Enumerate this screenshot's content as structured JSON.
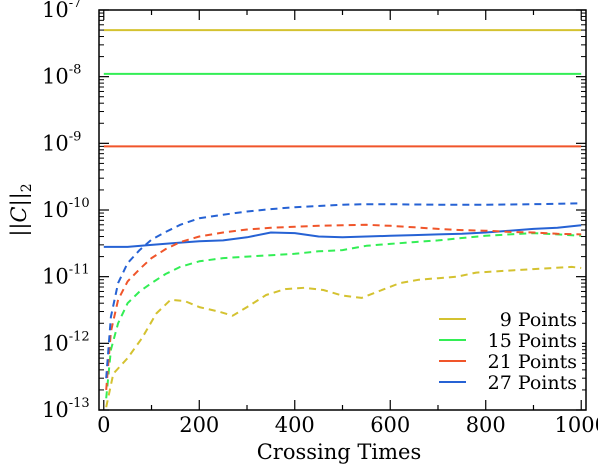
{
  "chart_data": {
    "type": "line",
    "title": "",
    "xlabel": "Crossing Times",
    "ylabel": "||C||₂",
    "ylabel_parts": {
      "open": "||",
      "symbol": "C",
      "close": "||",
      "sub": "2"
    },
    "yscale": "log",
    "xlim": [
      -10,
      1010
    ],
    "ylim": [
      1e-13,
      1e-07
    ],
    "xticks": [
      0,
      200,
      400,
      600,
      800,
      1000
    ],
    "xtick_labels": [
      "0",
      "200",
      "400",
      "600",
      "800",
      "1000"
    ],
    "yticks": [
      1e-13,
      1e-12,
      1e-11,
      1e-10,
      1e-09,
      1e-08,
      1e-07
    ],
    "ytick_labels": [
      {
        "base": "10",
        "exp": "-13"
      },
      {
        "base": "10",
        "exp": "-12"
      },
      {
        "base": "10",
        "exp": "-11"
      },
      {
        "base": "10",
        "exp": "-10"
      },
      {
        "base": "10",
        "exp": "-9"
      },
      {
        "base": "10",
        "exp": "-8"
      },
      {
        "base": "10",
        "exp": "-7"
      }
    ],
    "grid": false,
    "legend_position": "bottom-right",
    "legend": [
      {
        "label": "9 Points",
        "color": "#d4c230"
      },
      {
        "label": "15 Points",
        "color": "#33ee55"
      },
      {
        "label": "21 Points",
        "color": "#f0552a"
      },
      {
        "label": "27 Points",
        "color": "#2662d4"
      }
    ],
    "series": [
      {
        "style": "solid",
        "color": "#d4c230",
        "x": [
          0,
          1000
        ],
        "y": [
          5e-08,
          5e-08
        ]
      },
      {
        "style": "solid",
        "color": "#33ee55",
        "x": [
          0,
          1000
        ],
        "y": [
          1.1e-08,
          1.1e-08
        ]
      },
      {
        "style": "solid",
        "color": "#f0552a",
        "x": [
          0,
          1000
        ],
        "y": [
          9e-10,
          9e-10
        ]
      },
      {
        "style": "solid",
        "color": "#2662d4",
        "x": [
          0,
          50,
          100,
          150,
          200,
          250,
          300,
          350,
          400,
          450,
          500,
          550,
          600,
          650,
          700,
          750,
          800,
          850,
          900,
          950,
          1000
        ],
        "y": [
          2.8e-11,
          2.8e-11,
          3e-11,
          3.2e-11,
          3.4e-11,
          3.5e-11,
          3.9e-11,
          4.6e-11,
          4.5e-11,
          4e-11,
          3.9e-11,
          4e-11,
          4.1e-11,
          4.2e-11,
          4.3e-11,
          4.4e-11,
          4.6e-11,
          4.9e-11,
          5.2e-11,
          5.4e-11,
          5.9e-11
        ]
      },
      {
        "style": "dashed",
        "color": "#d4c230",
        "x": [
          5,
          20,
          50,
          80,
          110,
          140,
          170,
          200,
          240,
          270,
          300,
          340,
          380,
          420,
          460,
          500,
          540,
          580,
          620,
          660,
          700,
          740,
          780,
          820,
          860,
          900,
          940,
          980,
          1000
        ],
        "y": [
          1.1e-13,
          3.5e-13,
          6e-13,
          1.2e-12,
          2.8e-12,
          4.5e-12,
          4.3e-12,
          3.5e-12,
          3e-12,
          2.6e-12,
          3.5e-12,
          5.3e-12,
          6.5e-12,
          6.8e-12,
          6.3e-12,
          5.2e-12,
          4.8e-12,
          6.2e-12,
          8e-12,
          9e-12,
          9.5e-12,
          1e-11,
          1.15e-11,
          1.2e-11,
          1.25e-11,
          1.3e-11,
          1.35e-11,
          1.4e-11,
          1.35e-11
        ]
      },
      {
        "style": "dashed",
        "color": "#33ee55",
        "x": [
          5,
          15,
          30,
          50,
          75,
          100,
          130,
          160,
          200,
          250,
          300,
          350,
          400,
          450,
          500,
          550,
          600,
          650,
          700,
          750,
          800,
          850,
          900,
          950,
          1000
        ],
        "y": [
          1.5e-13,
          8e-13,
          2e-12,
          4e-12,
          6e-12,
          8e-12,
          1.1e-11,
          1.4e-11,
          1.7e-11,
          1.9e-11,
          2e-11,
          2.1e-11,
          2.2e-11,
          2.4e-11,
          2.5e-11,
          2.9e-11,
          3.1e-11,
          3.3e-11,
          3.5e-11,
          3.8e-11,
          4.1e-11,
          4.3e-11,
          4.5e-11,
          4.3e-11,
          4.1e-11
        ]
      },
      {
        "style": "dashed",
        "color": "#f0552a",
        "x": [
          5,
          15,
          30,
          50,
          75,
          100,
          130,
          160,
          200,
          250,
          300,
          350,
          400,
          450,
          500,
          550,
          600,
          650,
          700,
          750,
          800,
          850,
          900,
          950,
          1000
        ],
        "y": [
          2e-13,
          1.5e-12,
          4.5e-12,
          8.5e-12,
          1.3e-11,
          1.9e-11,
          2.6e-11,
          3.3e-11,
          4e-11,
          4.6e-11,
          5.1e-11,
          5.4e-11,
          5.6e-11,
          5.8e-11,
          5.9e-11,
          6e-11,
          5.8e-11,
          5.5e-11,
          5.2e-11,
          5e-11,
          4.9e-11,
          4.7e-11,
          4.6e-11,
          4.4e-11,
          4.3e-11
        ]
      },
      {
        "style": "dashed",
        "color": "#2662d4",
        "x": [
          5,
          15,
          30,
          50,
          75,
          100,
          130,
          160,
          200,
          250,
          300,
          350,
          400,
          450,
          500,
          550,
          600,
          650,
          700,
          750,
          800,
          850,
          900,
          950,
          1000
        ],
        "y": [
          3e-13,
          2.5e-12,
          8e-12,
          1.6e-11,
          2.5e-11,
          3.6e-11,
          4.7e-11,
          6e-11,
          7.5e-11,
          8.5e-11,
          9.5e-11,
          1.03e-10,
          1.1e-10,
          1.15e-10,
          1.2e-10,
          1.22e-10,
          1.22e-10,
          1.21e-10,
          1.2e-10,
          1.2e-10,
          1.2e-10,
          1.21e-10,
          1.22e-10,
          1.24e-10,
          1.26e-10
        ]
      }
    ]
  }
}
